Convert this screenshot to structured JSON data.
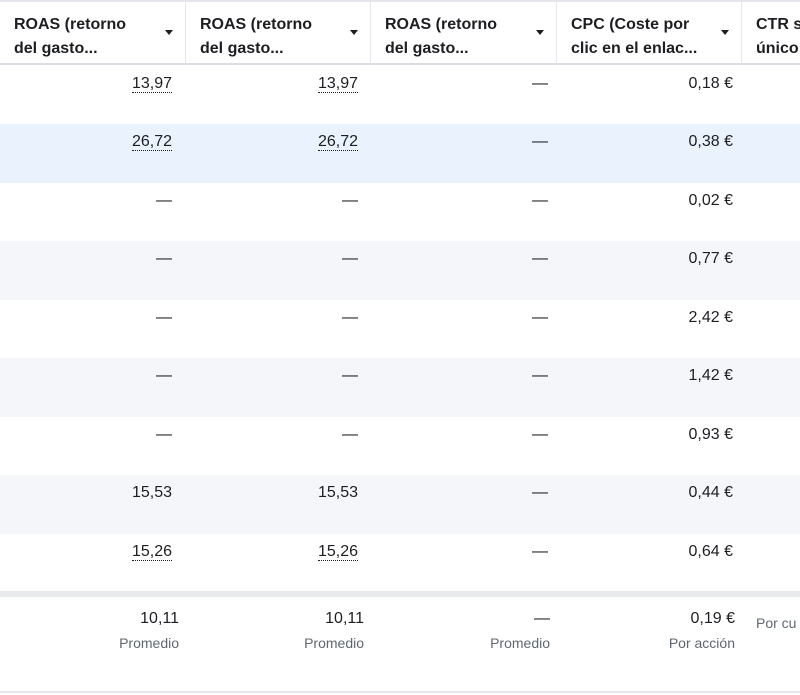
{
  "columns": [
    {
      "line1": "ROAS (retorno",
      "line2": "del gasto..."
    },
    {
      "line1": "ROAS (retorno",
      "line2": "del gasto..."
    },
    {
      "line1": "ROAS (retorno",
      "line2": "del gasto..."
    },
    {
      "line1": "CPC (Coste por",
      "line2": "clic en el enlac..."
    },
    {
      "line1": "CTR s",
      "line2": "único"
    }
  ],
  "rows": [
    {
      "c": [
        "13,97",
        "13,97",
        "—",
        "0,18 €"
      ],
      "underline": [
        true,
        true,
        false,
        false
      ],
      "state": "normal"
    },
    {
      "c": [
        "26,72",
        "26,72",
        "—",
        "0,38 €"
      ],
      "underline": [
        true,
        true,
        false,
        false
      ],
      "state": "selected"
    },
    {
      "c": [
        "—",
        "—",
        "—",
        "0,02 €"
      ],
      "underline": [
        false,
        false,
        false,
        false
      ],
      "state": "normal"
    },
    {
      "c": [
        "—",
        "—",
        "—",
        "0,77 €"
      ],
      "underline": [
        false,
        false,
        false,
        false
      ],
      "state": "striped"
    },
    {
      "c": [
        "—",
        "—",
        "—",
        "2,42 €"
      ],
      "underline": [
        false,
        false,
        false,
        false
      ],
      "state": "normal"
    },
    {
      "c": [
        "—",
        "—",
        "—",
        "1,42 €"
      ],
      "underline": [
        false,
        false,
        false,
        false
      ],
      "state": "striped"
    },
    {
      "c": [
        "—",
        "—",
        "—",
        "0,93 €"
      ],
      "underline": [
        false,
        false,
        false,
        false
      ],
      "state": "normal"
    },
    {
      "c": [
        "15,53",
        "15,53",
        "—",
        "0,44 €"
      ],
      "underline": [
        false,
        false,
        false,
        false
      ],
      "state": "striped"
    },
    {
      "c": [
        "15,26",
        "15,26",
        "—",
        "0,64 €"
      ],
      "underline": [
        true,
        true,
        false,
        false
      ],
      "state": "normal"
    }
  ],
  "footer": [
    {
      "value": "10,11",
      "label": "Promedio"
    },
    {
      "value": "10,11",
      "label": "Promedio"
    },
    {
      "value": "—",
      "label": "Promedio"
    },
    {
      "value": "0,19 €",
      "label": "Por acción"
    },
    {
      "value": "",
      "label": "Por cu"
    }
  ],
  "colors": {
    "selected": "#eaf2fd",
    "striped": "#f5f6fa",
    "normal": "#ffffff"
  }
}
